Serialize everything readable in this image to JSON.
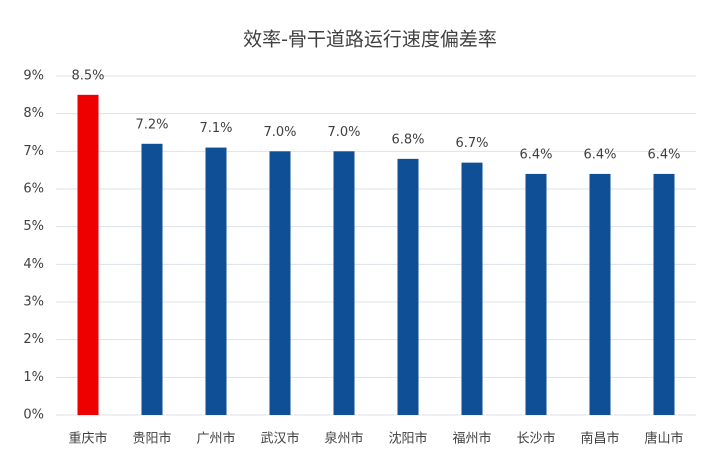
{
  "chart_data": {
    "type": "bar",
    "title": "效率-骨干道路运行速度偏差率",
    "categories": [
      "重庆市",
      "贵阳市",
      "广州市",
      "武汉市",
      "泉州市",
      "沈阳市",
      "福州市",
      "长沙市",
      "南昌市",
      "唐山市"
    ],
    "values": [
      8.5,
      7.2,
      7.1,
      7.0,
      7.0,
      6.8,
      6.7,
      6.4,
      6.4,
      6.4
    ],
    "value_labels": [
      "8.5%",
      "7.2%",
      "7.1%",
      "7.0%",
      "7.0%",
      "6.8%",
      "6.7%",
      "6.4%",
      "6.4%",
      "6.4%"
    ],
    "colors": [
      "#ee0000",
      "#0e4f96",
      "#0e4f96",
      "#0e4f96",
      "#0e4f96",
      "#0e4f96",
      "#0e4f96",
      "#0e4f96",
      "#0e4f96",
      "#0e4f96"
    ],
    "ylim": [
      0,
      9
    ],
    "yticks": [
      {
        "value": 0,
        "label": "0%"
      },
      {
        "value": 1,
        "label": "1%"
      },
      {
        "value": 2,
        "label": "2%"
      },
      {
        "value": 3,
        "label": "3%"
      },
      {
        "value": 4,
        "label": "4%"
      },
      {
        "value": 5,
        "label": "5%"
      },
      {
        "value": 6,
        "label": "6%"
      },
      {
        "value": 7,
        "label": "7%"
      },
      {
        "value": 8,
        "label": "8%"
      },
      {
        "value": 9,
        "label": "9%"
      }
    ],
    "grid": true
  }
}
